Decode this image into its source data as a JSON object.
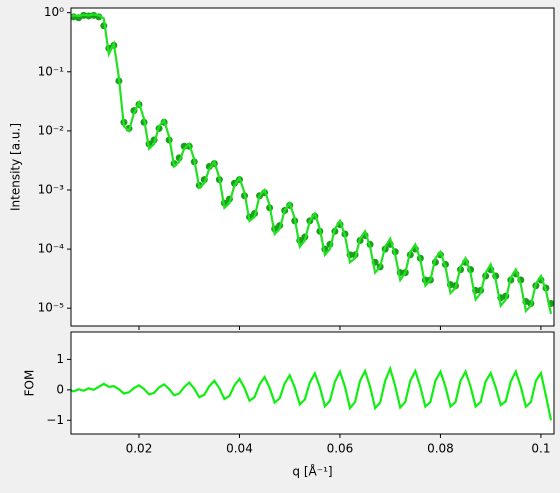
{
  "chart_data": [
    {
      "type": "scatter",
      "ylabel": "Intensity [a.u.]",
      "log_y": true,
      "xlim": [
        0.00647,
        0.1026
      ],
      "ylim": [
        5e-06,
        1.2
      ],
      "yticks": [
        {
          "value": 1,
          "label": "10⁰"
        },
        {
          "value": 0.1,
          "label": "10⁻¹"
        },
        {
          "value": 0.01,
          "label": "10⁻²"
        },
        {
          "value": 0.001,
          "label": "10⁻³"
        },
        {
          "value": 0.0001,
          "label": "10⁻⁴"
        },
        {
          "value": 1e-05,
          "label": "10⁻⁵"
        }
      ],
      "xticks": [
        0.02,
        0.04,
        0.06,
        0.08,
        0.1
      ],
      "x": [
        0.006,
        0.007,
        0.008,
        0.009,
        0.01,
        0.011,
        0.012,
        0.013,
        0.014,
        0.015,
        0.016,
        0.017,
        0.018,
        0.019,
        0.02,
        0.021,
        0.022,
        0.023,
        0.024,
        0.025,
        0.026,
        0.027,
        0.028,
        0.029,
        0.03,
        0.031,
        0.032,
        0.033,
        0.034,
        0.035,
        0.036,
        0.037,
        0.038,
        0.039,
        0.04,
        0.041,
        0.042,
        0.043,
        0.044,
        0.045,
        0.046,
        0.047,
        0.048,
        0.049,
        0.05,
        0.051,
        0.052,
        0.053,
        0.054,
        0.055,
        0.056,
        0.057,
        0.058,
        0.059,
        0.06,
        0.061,
        0.062,
        0.063,
        0.064,
        0.065,
        0.066,
        0.067,
        0.068,
        0.069,
        0.07,
        0.071,
        0.072,
        0.073,
        0.074,
        0.075,
        0.076,
        0.077,
        0.078,
        0.079,
        0.08,
        0.081,
        0.082,
        0.083,
        0.084,
        0.085,
        0.086,
        0.087,
        0.088,
        0.089,
        0.09,
        0.091,
        0.092,
        0.093,
        0.094,
        0.095,
        0.096,
        0.097,
        0.098,
        0.099,
        0.1,
        0.101,
        0.102
      ],
      "series": [
        {
          "mode": "markers",
          "color": "#1a9f1a",
          "values": [
            0.8,
            0.85,
            0.82,
            0.9,
            0.88,
            0.9,
            0.85,
            0.6,
            0.25,
            0.28,
            0.07,
            0.014,
            0.011,
            0.022,
            0.028,
            0.014,
            0.006,
            0.007,
            0.011,
            0.014,
            0.007,
            0.0028,
            0.0035,
            0.0055,
            0.0055,
            0.003,
            0.0012,
            0.0015,
            0.0025,
            0.0028,
            0.0015,
            0.0006,
            0.0007,
            0.0013,
            0.0015,
            0.0008,
            0.00035,
            0.0004,
            0.0008,
            0.0009,
            0.0005,
            0.00022,
            0.00025,
            0.00045,
            0.00055,
            0.0003,
            0.00014,
            0.00016,
            0.0003,
            0.00036,
            0.0002,
            0.0001,
            0.00012,
            0.0002,
            0.00026,
            0.00018,
            8e-05,
            8e-05,
            0.00014,
            0.00017,
            0.00012,
            6e-05,
            5e-05,
            0.0001,
            0.00012,
            9e-05,
            4e-05,
            4e-05,
            8e-05,
            0.0001,
            7e-05,
            3e-05,
            3e-05,
            6e-05,
            8e-05,
            5.5e-05,
            2.5e-05,
            2.4e-05,
            4.5e-05,
            6e-05,
            4.5e-05,
            2e-05,
            2e-05,
            3.5e-05,
            4.5e-05,
            3.5e-05,
            1.5e-05,
            1.6e-05,
            3e-05,
            3.8e-05,
            3e-05,
            1.3e-05,
            1.2e-05,
            2.4e-05,
            3e-05,
            2.2e-05,
            1.2e-05
          ]
        },
        {
          "mode": "line",
          "color": "#22e022",
          "values": [
            0.85,
            0.9,
            0.88,
            0.92,
            0.9,
            0.93,
            0.9,
            0.8,
            0.2,
            0.3,
            0.08,
            0.012,
            0.01,
            0.02,
            0.03,
            0.016,
            0.005,
            0.006,
            0.012,
            0.015,
            0.008,
            0.0025,
            0.003,
            0.005,
            0.006,
            0.0033,
            0.0011,
            0.0013,
            0.0023,
            0.003,
            0.0016,
            0.0005,
            0.0006,
            0.0012,
            0.0016,
            0.0009,
            0.0003,
            0.00035,
            0.0008,
            0.001,
            0.00055,
            0.00018,
            0.00022,
            0.00045,
            0.0006,
            0.00033,
            0.00011,
            0.00014,
            0.0003,
            0.0004,
            0.00022,
            8e-05,
            0.0001,
            0.00022,
            0.0003,
            0.00017,
            6e-05,
            7e-05,
            0.00015,
            0.0002,
            0.00011,
            4e-05,
            5e-05,
            0.00011,
            0.00015,
            8e-05,
            3e-05,
            4e-05,
            9e-05,
            0.00012,
            6.6e-05,
            2.4e-05,
            3e-05,
            7e-05,
            9e-05,
            5e-05,
            1.8e-05,
            2.2e-05,
            5e-05,
            7e-05,
            3.9e-05,
            1.4e-05,
            1.8e-05,
            4e-05,
            5.5e-05,
            3e-05,
            1.1e-05,
            1.4e-05,
            3.3e-05,
            4.5e-05,
            2.5e-05,
            9e-06,
            1.1e-05,
            2.6e-05,
            3.5e-05,
            2e-05,
            8e-06
          ]
        }
      ]
    },
    {
      "type": "line",
      "ylabel": "FOM",
      "xlabel": "q [Å⁻¹]",
      "xlim": [
        0.00647,
        0.1026
      ],
      "ylim": [
        -1.45,
        1.9
      ],
      "yticks": [
        1,
        0,
        {
          "value": -1,
          "label": "−1"
        }
      ],
      "xticks": [
        0.02,
        0.04,
        0.06,
        0.08,
        0.1
      ],
      "x": [
        0.006,
        0.007,
        0.008,
        0.009,
        0.01,
        0.011,
        0.012,
        0.013,
        0.014,
        0.015,
        0.016,
        0.017,
        0.018,
        0.019,
        0.02,
        0.021,
        0.022,
        0.023,
        0.024,
        0.025,
        0.026,
        0.027,
        0.028,
        0.029,
        0.03,
        0.031,
        0.032,
        0.033,
        0.034,
        0.035,
        0.036,
        0.037,
        0.038,
        0.039,
        0.04,
        0.041,
        0.042,
        0.043,
        0.044,
        0.045,
        0.046,
        0.047,
        0.048,
        0.049,
        0.05,
        0.051,
        0.052,
        0.053,
        0.054,
        0.055,
        0.056,
        0.057,
        0.058,
        0.059,
        0.06,
        0.061,
        0.062,
        0.063,
        0.064,
        0.065,
        0.066,
        0.067,
        0.068,
        0.069,
        0.07,
        0.071,
        0.072,
        0.073,
        0.074,
        0.075,
        0.076,
        0.077,
        0.078,
        0.079,
        0.08,
        0.081,
        0.082,
        0.083,
        0.084,
        0.085,
        0.086,
        0.087,
        0.088,
        0.089,
        0.09,
        0.091,
        0.092,
        0.093,
        0.094,
        0.095,
        0.096,
        0.097,
        0.098,
        0.099,
        0.1,
        0.101,
        0.102
      ],
      "series": [
        {
          "mode": "line",
          "color": "#11ee11",
          "values": [
            0,
            -0.05,
            0.02,
            -0.03,
            0.05,
            0,
            0.1,
            0.2,
            0.1,
            0.12,
            0.02,
            -0.12,
            -0.08,
            0.06,
            0.15,
            0.03,
            -0.15,
            -0.1,
            0.08,
            0.18,
            0.03,
            -0.18,
            -0.12,
            0.09,
            0.24,
            0.04,
            -0.24,
            -0.16,
            0.12,
            0.3,
            0.05,
            -0.3,
            -0.2,
            0.15,
            0.36,
            0.06,
            -0.36,
            -0.24,
            0.18,
            0.42,
            0.07,
            -0.42,
            -0.28,
            0.21,
            0.48,
            0.08,
            -0.48,
            -0.32,
            0.24,
            0.54,
            0.09,
            -0.54,
            -0.36,
            0.27,
            0.6,
            0.1,
            -0.6,
            -0.4,
            0.3,
            0.62,
            0.1,
            -0.6,
            -0.42,
            0.3,
            0.7,
            0.12,
            -0.58,
            -0.4,
            0.3,
            0.62,
            0.1,
            -0.55,
            -0.4,
            0.3,
            0.6,
            0.1,
            -0.55,
            -0.4,
            0.3,
            0.6,
            0.1,
            -0.55,
            -0.4,
            0.28,
            0.55,
            0.08,
            -0.5,
            -0.38,
            0.28,
            0.6,
            0.1,
            -0.55,
            -0.4,
            0.3,
            0.55,
            -0.2,
            -1.0
          ]
        }
      ]
    }
  ]
}
